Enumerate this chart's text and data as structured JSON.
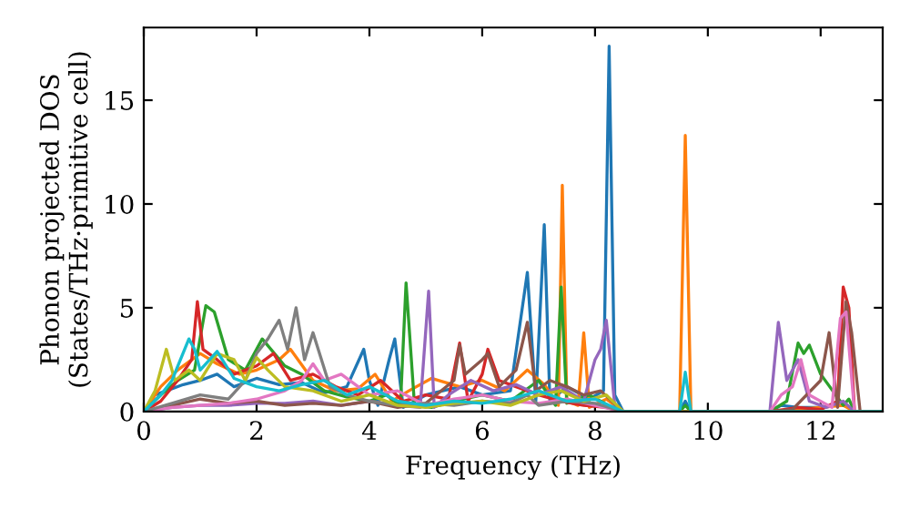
{
  "chart_data": {
    "type": "line",
    "xlabel": "Frequency (THz)",
    "ylabel": "Phonon projected DOS\n(States/THz·primitive cell)",
    "xlim": [
      0,
      13.1
    ],
    "ylim": [
      0,
      18.5
    ],
    "xticks": [
      0,
      2,
      4,
      6,
      8,
      10,
      12
    ],
    "yticks": [
      0,
      5,
      10,
      15
    ],
    "grid": false,
    "marker": "none",
    "line_style": "solid",
    "series": [
      {
        "color": "#1f77b4",
        "x": [
          0,
          0.2,
          0.4,
          0.7,
          1.0,
          1.3,
          1.6,
          2.0,
          2.4,
          2.8,
          3.2,
          3.6,
          3.9,
          4.0,
          4.15,
          4.35,
          4.45,
          4.6,
          5.0,
          5.6,
          6.0,
          6.5,
          6.8,
          6.95,
          7.1,
          7.2,
          7.5,
          7.9,
          8.15,
          8.25,
          8.35,
          8.5,
          9.5,
          9.6,
          9.7,
          11.1,
          11.3,
          11.6,
          12.0
        ],
        "values": [
          0,
          0.8,
          1.0,
          1.3,
          1.5,
          1.8,
          1.2,
          1.6,
          1.3,
          1.4,
          0.9,
          1.2,
          3.0,
          1.5,
          0.3,
          2.5,
          3.5,
          0.2,
          0.8,
          1.2,
          0.8,
          1.0,
          6.7,
          0.5,
          9.0,
          0.5,
          1.2,
          0.6,
          1.0,
          17.6,
          0.8,
          0,
          0,
          0.5,
          0,
          0,
          0.3,
          0.2,
          0.2
        ]
      },
      {
        "color": "#ff7f0e",
        "x": [
          0,
          0.3,
          0.6,
          1.0,
          1.3,
          1.7,
          2.0,
          2.4,
          2.6,
          3.0,
          3.4,
          3.8,
          4.1,
          4.4,
          4.7,
          5.1,
          5.6,
          6.0,
          6.4,
          6.8,
          7.1,
          7.35,
          7.42,
          7.5,
          7.7,
          7.8,
          7.9,
          8.2,
          8.5,
          9.5,
          9.6,
          9.7,
          11.1,
          12.0,
          12.4,
          12.6,
          13.1
        ],
        "values": [
          0,
          1.2,
          2.0,
          2.8,
          2.3,
          1.8,
          2.0,
          2.5,
          3.0,
          1.5,
          1.0,
          1.1,
          1.8,
          0.5,
          1.0,
          1.6,
          1.2,
          1.5,
          1.0,
          2.0,
          1.3,
          0.3,
          10.9,
          0.5,
          0.3,
          3.8,
          0.2,
          0.6,
          0,
          0,
          13.3,
          0,
          0,
          0.2,
          0.3,
          0,
          0
        ]
      },
      {
        "color": "#2ca02c",
        "x": [
          0,
          0.3,
          0.6,
          0.9,
          1.1,
          1.25,
          1.5,
          1.8,
          2.1,
          2.5,
          2.8,
          3.2,
          3.6,
          4.0,
          4.3,
          4.55,
          4.65,
          4.8,
          5.1,
          5.5,
          6.0,
          6.5,
          7.0,
          7.3,
          7.4,
          7.5,
          7.9,
          8.1,
          8.3,
          8.5,
          9.5,
          9.6,
          9.7,
          11.1,
          11.4,
          11.6,
          11.7,
          11.8,
          12.0,
          12.4,
          12.5,
          12.6,
          13.1
        ],
        "values": [
          0,
          0.8,
          1.5,
          2.0,
          5.1,
          4.8,
          2.5,
          2.0,
          3.5,
          2.2,
          1.8,
          1.0,
          0.7,
          0.5,
          0.8,
          0.3,
          6.2,
          0.3,
          0.2,
          0.5,
          0.8,
          0.5,
          1.5,
          0.3,
          6.0,
          0.4,
          0.8,
          0.5,
          0.2,
          0,
          0,
          0.3,
          0,
          0,
          0.5,
          3.3,
          2.8,
          3.2,
          1.8,
          0.3,
          0.6,
          0,
          0
        ]
      },
      {
        "color": "#d62728",
        "x": [
          0,
          0.3,
          0.6,
          0.85,
          0.95,
          1.05,
          1.3,
          1.6,
          2.0,
          2.3,
          2.6,
          3.0,
          3.4,
          3.8,
          4.2,
          4.6,
          5.0,
          5.4,
          5.6,
          5.75,
          6.0,
          6.1,
          6.3,
          6.6,
          7.0,
          7.4,
          7.8,
          8.2,
          8.5,
          11.1,
          11.6,
          12.0,
          12.3,
          12.4,
          12.5,
          12.6,
          13.1
        ],
        "values": [
          0,
          0.5,
          1.5,
          2.5,
          5.3,
          3.0,
          2.5,
          1.8,
          2.2,
          2.8,
          1.5,
          1.8,
          1.2,
          0.8,
          1.5,
          0.5,
          0.8,
          0.6,
          3.3,
          0.5,
          1.8,
          3.0,
          1.5,
          1.2,
          0.8,
          0.5,
          0.3,
          0.2,
          0,
          0,
          0.2,
          0.1,
          0.5,
          6.0,
          5.0,
          0,
          0
        ]
      },
      {
        "color": "#9467bd",
        "x": [
          0,
          0.5,
          1.0,
          1.5,
          2.0,
          2.5,
          3.0,
          3.5,
          4.0,
          4.5,
          4.9,
          5.05,
          5.15,
          5.4,
          5.8,
          6.2,
          6.6,
          7.0,
          7.4,
          7.8,
          8.0,
          8.1,
          8.2,
          8.35,
          8.5,
          11.1,
          11.25,
          11.4,
          11.6,
          11.8,
          12.1,
          12.4,
          12.6,
          13.1
        ],
        "values": [
          0,
          0.2,
          0.3,
          0.3,
          0.4,
          0.4,
          0.5,
          0.3,
          0.5,
          0.3,
          0.2,
          5.8,
          0.2,
          0.8,
          1.5,
          1.0,
          1.3,
          0.8,
          1.2,
          0.5,
          2.5,
          3.0,
          4.4,
          0.3,
          0,
          0,
          4.3,
          1.5,
          2.5,
          0.5,
          0.2,
          0.5,
          0,
          0
        ]
      },
      {
        "color": "#8c564b",
        "x": [
          0,
          0.5,
          1.0,
          1.5,
          2.0,
          2.5,
          3.0,
          3.5,
          4.0,
          4.5,
          5.0,
          5.5,
          5.6,
          5.7,
          6.0,
          6.1,
          6.3,
          6.6,
          6.8,
          6.95,
          7.2,
          7.5,
          7.8,
          8.1,
          8.5,
          11.1,
          11.5,
          12.0,
          12.15,
          12.3,
          12.45,
          12.55,
          12.7,
          13.1
        ],
        "values": [
          0,
          0.3,
          0.6,
          0.4,
          0.5,
          0.3,
          0.4,
          0.3,
          0.5,
          0.2,
          0.4,
          1.5,
          3.2,
          1.8,
          2.5,
          2.8,
          1.2,
          2.0,
          4.3,
          1.0,
          1.5,
          1.2,
          0.8,
          1.0,
          0,
          0,
          0.1,
          1.5,
          3.8,
          0.2,
          5.3,
          3.8,
          0,
          0
        ]
      },
      {
        "color": "#e377c2",
        "x": [
          0,
          0.5,
          1.0,
          1.5,
          2.0,
          2.5,
          2.8,
          3.0,
          3.2,
          3.5,
          4.0,
          4.5,
          5.0,
          5.5,
          6.0,
          6.5,
          7.0,
          7.5,
          8.0,
          8.5,
          11.1,
          11.3,
          11.5,
          11.65,
          11.8,
          12.2,
          12.35,
          12.45,
          12.6,
          13.1
        ],
        "values": [
          0,
          0.2,
          0.3,
          0.4,
          0.6,
          1.0,
          1.5,
          2.3,
          1.5,
          1.8,
          0.8,
          1.0,
          0.3,
          0.6,
          0.8,
          0.5,
          0.4,
          0.6,
          0.3,
          0,
          0,
          0.8,
          1.2,
          2.5,
          0.8,
          0.2,
          4.5,
          4.8,
          0,
          0
        ]
      },
      {
        "color": "#7f7f7f",
        "x": [
          0,
          0.5,
          1.0,
          1.5,
          1.8,
          2.0,
          2.2,
          2.4,
          2.55,
          2.7,
          2.85,
          3.0,
          3.3,
          3.6,
          4.0,
          4.5,
          5.0,
          5.5,
          6.0,
          6.5,
          6.8,
          7.0,
          7.5,
          8.0,
          8.5,
          13.1
        ],
        "values": [
          0,
          0.4,
          0.8,
          0.6,
          1.5,
          2.8,
          3.5,
          4.4,
          3.0,
          5.0,
          2.5,
          3.8,
          1.2,
          0.8,
          0.5,
          0.3,
          0.4,
          0.3,
          0.5,
          0.4,
          0.8,
          0.3,
          0.5,
          0.4,
          0,
          0
        ]
      },
      {
        "color": "#bcbd22",
        "x": [
          0,
          0.2,
          0.4,
          0.55,
          0.8,
          1.0,
          1.3,
          1.6,
          1.8,
          2.0,
          2.2,
          2.5,
          3.0,
          3.5,
          4.0,
          4.5,
          5.0,
          5.5,
          6.0,
          6.5,
          7.0,
          7.4,
          7.8,
          8.2,
          8.5,
          13.1
        ],
        "values": [
          0,
          1.0,
          3.0,
          1.5,
          2.0,
          1.5,
          2.8,
          2.5,
          1.5,
          2.6,
          2.0,
          1.2,
          1.0,
          0.5,
          0.8,
          0.3,
          0.2,
          0.4,
          0.5,
          0.3,
          0.8,
          1.0,
          0.5,
          0.8,
          0,
          0
        ]
      },
      {
        "color": "#17becf",
        "x": [
          0,
          0.3,
          0.5,
          0.8,
          0.9,
          1.0,
          1.3,
          1.6,
          2.0,
          2.4,
          2.8,
          3.2,
          3.6,
          4.0,
          4.5,
          5.0,
          5.5,
          6.0,
          6.5,
          7.0,
          7.5,
          8.0,
          8.5,
          9.5,
          9.6,
          9.7,
          13.1
        ],
        "values": [
          0,
          0.8,
          1.5,
          3.5,
          3.0,
          2.0,
          2.9,
          1.6,
          1.2,
          1.0,
          1.3,
          1.5,
          0.8,
          1.2,
          0.5,
          0.3,
          0.5,
          0.4,
          0.6,
          1.0,
          0.5,
          0.6,
          0,
          0,
          1.9,
          0,
          0
        ]
      }
    ]
  }
}
